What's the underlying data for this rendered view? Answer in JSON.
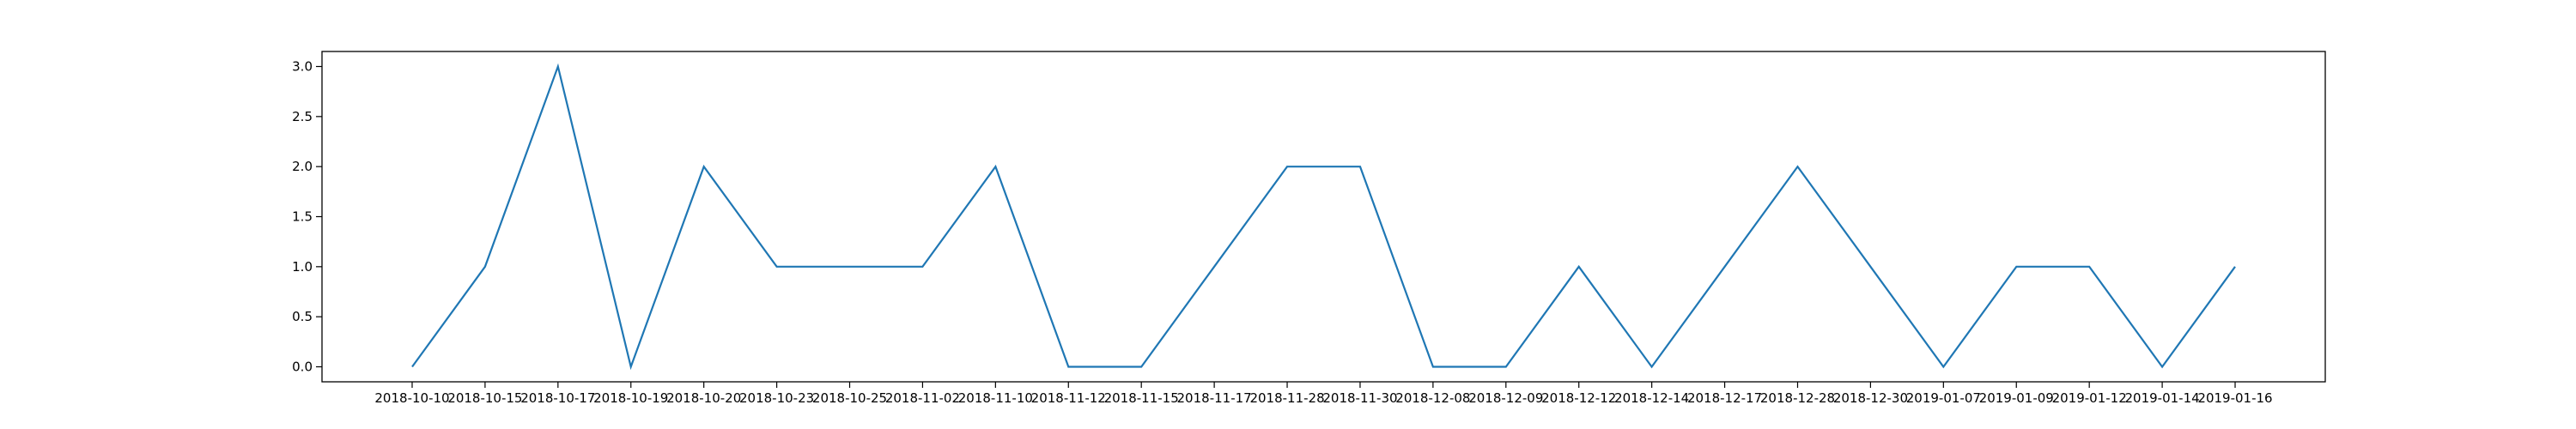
{
  "chart_data": {
    "type": "line",
    "categories": [
      "2018-10-10",
      "2018-10-15",
      "2018-10-17",
      "2018-10-19",
      "2018-10-20",
      "2018-10-23",
      "2018-10-25",
      "2018-11-02",
      "2018-11-10",
      "2018-11-12",
      "2018-11-15",
      "2018-11-17",
      "2018-11-28",
      "2018-11-30",
      "2018-12-08",
      "2018-12-09",
      "2018-12-12",
      "2018-12-14",
      "2018-12-17",
      "2018-12-28",
      "2018-12-30",
      "2019-01-07",
      "2019-01-09",
      "2019-01-12",
      "2019-01-14",
      "2019-01-16"
    ],
    "series": [
      {
        "values": [
          0,
          1,
          3,
          0,
          2,
          1,
          1,
          1,
          2,
          0,
          0,
          1,
          2,
          2,
          0,
          0,
          1,
          0,
          1,
          2,
          1,
          0,
          1,
          1,
          0,
          1
        ]
      }
    ],
    "yticks": [
      "0.0",
      "0.5",
      "1.0",
      "1.5",
      "2.0",
      "2.5",
      "3.0"
    ],
    "ylim": [
      -0.15,
      3.15
    ],
    "title": "",
    "xlabel": "",
    "ylabel": "",
    "grid": false,
    "line_color": "#1f77b4"
  }
}
